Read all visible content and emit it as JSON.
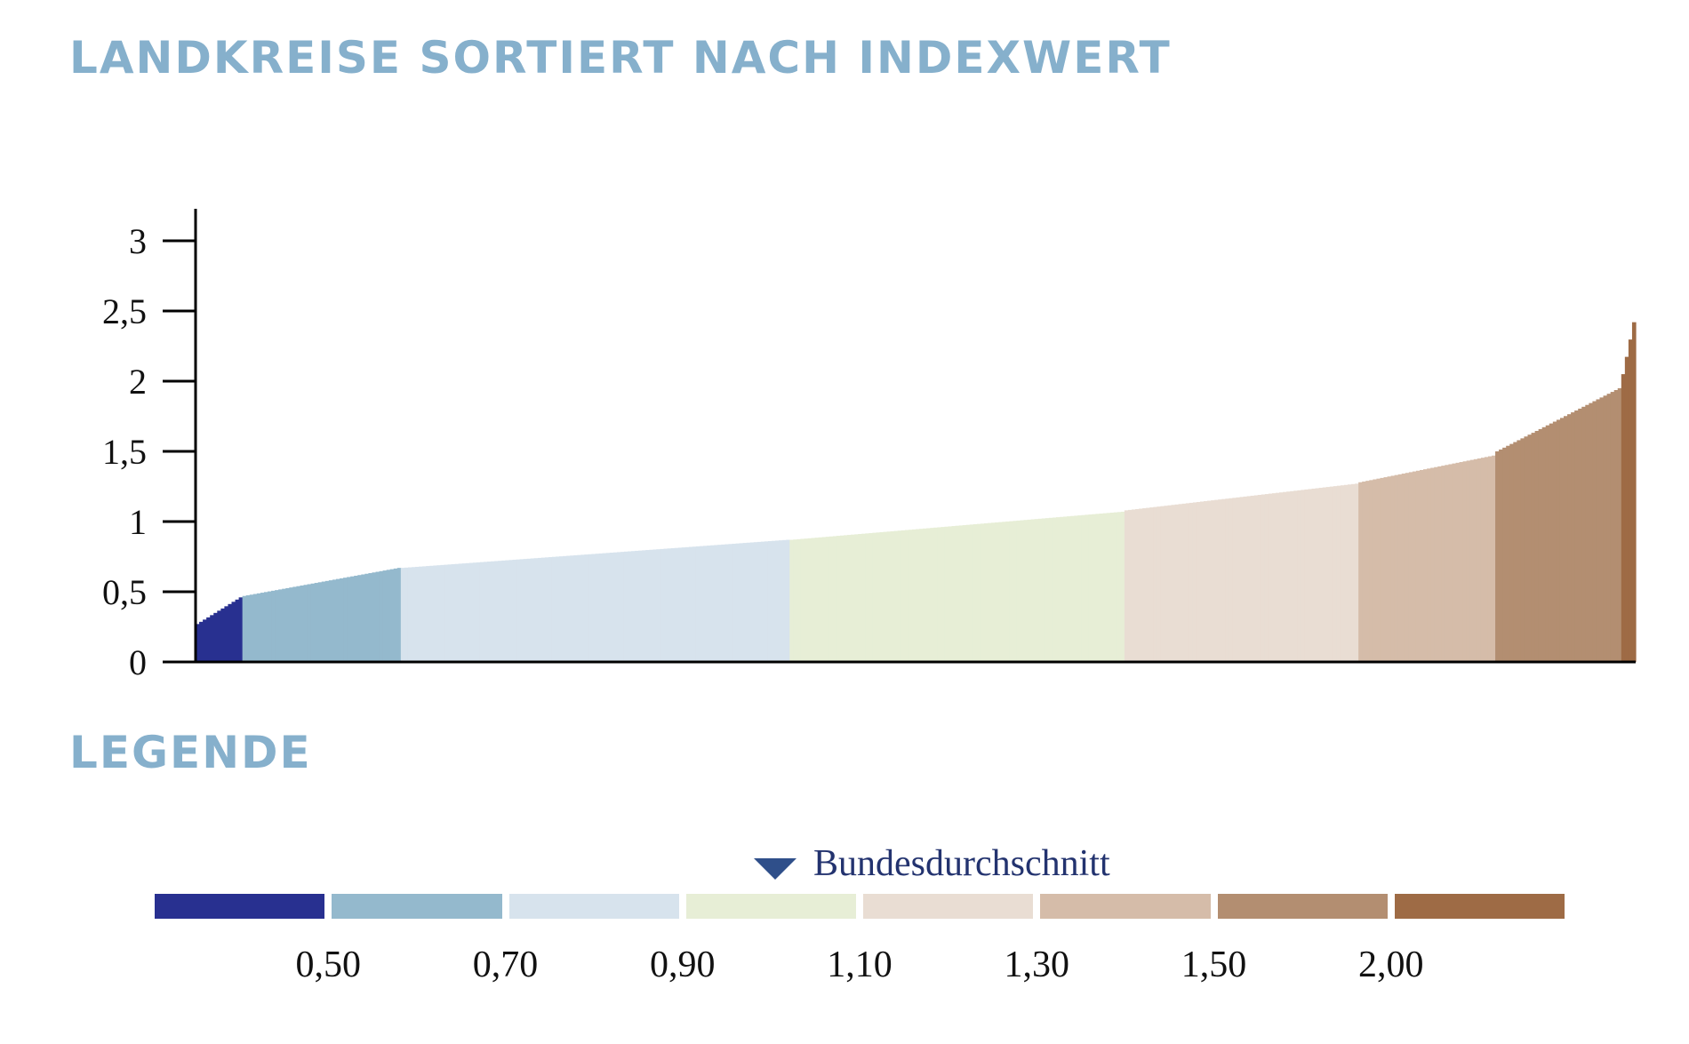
{
  "page": {
    "title": "LANDKREISE SORTIERT NACH INDEXWERT",
    "legend_title": "LEGENDE"
  },
  "legend": {
    "average_label": "Bundesdurchschnitt",
    "colors": [
      "#283090",
      "#94b9cd",
      "#d7e3ed",
      "#e7eed6",
      "#e9ddd3",
      "#d5bca9",
      "#b38e71",
      "#9e6b45"
    ],
    "boundaries": [
      "0,50",
      "0,70",
      "0,90",
      "1,10",
      "1,30",
      "1,50",
      "2,00"
    ]
  },
  "chart_data": {
    "type": "area",
    "title": "LANDKREISE SORTIERT NACH INDEXWERT",
    "xlabel": "",
    "ylabel": "",
    "ylim": [
      0,
      3.1
    ],
    "yticks": [
      0,
      0.5,
      1,
      1.5,
      2,
      2.5,
      3
    ],
    "ytick_labels": [
      "0",
      "0,5",
      "1",
      "1,5",
      "2",
      "2,5",
      "3"
    ],
    "grid": false,
    "n_districts": 400,
    "segments": [
      {
        "class_upper": "0,50",
        "color": "#283090",
        "count": 13,
        "start": 0.27,
        "end": 0.46
      },
      {
        "class_upper": "0,70",
        "color": "#94b9cd",
        "count": 44,
        "start": 0.47,
        "end": 0.67
      },
      {
        "class_upper": "0,90",
        "color": "#d7e3ed",
        "count": 108,
        "start": 0.67,
        "end": 0.87
      },
      {
        "class_upper": "1,10",
        "color": "#e7eed6",
        "count": 93,
        "start": 0.87,
        "end": 1.07
      },
      {
        "class_upper": "1,30",
        "color": "#e9ddd3",
        "count": 65,
        "start": 1.08,
        "end": 1.27
      },
      {
        "class_upper": "1,50",
        "color": "#d5bca9",
        "count": 38,
        "start": 1.28,
        "end": 1.47
      },
      {
        "class_upper": "2,00",
        "color": "#b38e71",
        "count": 35,
        "start": 1.5,
        "end": 1.95
      },
      {
        "class_upper": "> 2,00",
        "color": "#9e6b45",
        "count": 4,
        "start": 2.05,
        "end": 2.42
      }
    ]
  }
}
